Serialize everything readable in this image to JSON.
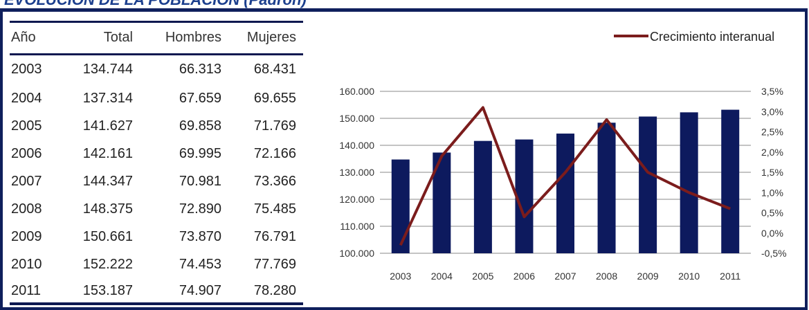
{
  "page_title": "EVOLUCIÓN DE LA POBLACIÓN (Padrón)",
  "table": {
    "headers": {
      "year": "Año",
      "total": "Total",
      "men": "Hombres",
      "women": "Mujeres"
    },
    "rows": [
      {
        "year": "2003",
        "total": "134.744",
        "men": "66.313",
        "women": "68.431"
      },
      {
        "year": "2004",
        "total": "137.314",
        "men": "67.659",
        "women": "69.655"
      },
      {
        "year": "2005",
        "total": "141.627",
        "men": "69.858",
        "women": "71.769"
      },
      {
        "year": "2006",
        "total": "142.161",
        "men": "69.995",
        "women": "72.166"
      },
      {
        "year": "2007",
        "total": "144.347",
        "men": "70.981",
        "women": "73.366"
      },
      {
        "year": "2008",
        "total": "148.375",
        "men": "72.890",
        "women": "75.485"
      },
      {
        "year": "2009",
        "total": "150.661",
        "men": "73.870",
        "women": "76.791"
      },
      {
        "year": "2010",
        "total": "152.222",
        "men": "74.453",
        "women": "77.769"
      },
      {
        "year": "2011",
        "total": "153.187",
        "men": "74.907",
        "women": "78.280"
      }
    ]
  },
  "chart_data": {
    "type": "bar",
    "categories": [
      "2003",
      "2004",
      "2005",
      "2006",
      "2007",
      "2008",
      "2009",
      "2010",
      "2011"
    ],
    "series": [
      {
        "type": "bar",
        "values": [
          134744,
          137314,
          141627,
          142161,
          144347,
          148375,
          150661,
          152222,
          153187
        ],
        "color": "#0d1a5e",
        "axis": "left"
      },
      {
        "type": "line",
        "name": "Crecimiento interanual",
        "values": [
          -0.3,
          1.9,
          3.1,
          0.4,
          1.5,
          2.8,
          1.5,
          1.0,
          0.6
        ],
        "color": "#7b1c1c",
        "axis": "right"
      }
    ],
    "y_left": {
      "min": 100000,
      "max": 160000,
      "ticks": [
        "100.000",
        "110.000",
        "120.000",
        "130.000",
        "140.000",
        "150.000",
        "160.000"
      ]
    },
    "y_right": {
      "min": -0.5,
      "max": 3.5,
      "ticks": [
        "-0,5%",
        "0,0%",
        "0,5%",
        "1,0%",
        "1,5%",
        "2,0%",
        "2,5%",
        "3,0%",
        "3,5%"
      ]
    },
    "grid": true,
    "legend": "top-right"
  }
}
